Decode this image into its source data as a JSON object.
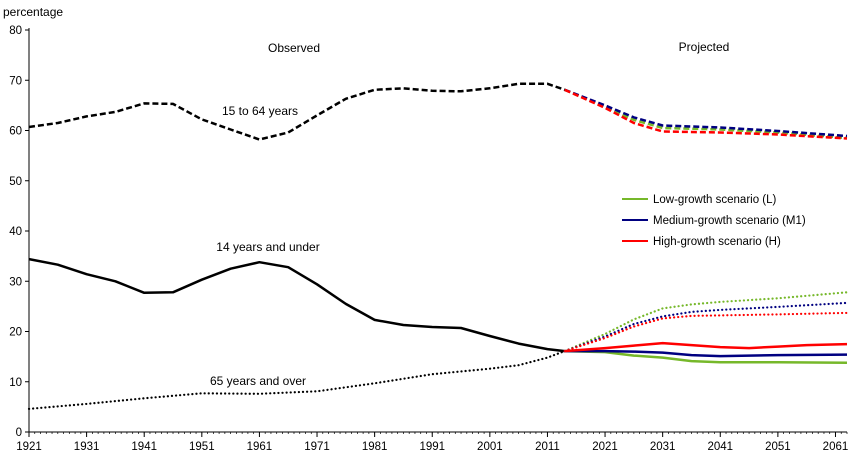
{
  "chart_data": {
    "type": "line",
    "ylabel": "percentage",
    "xlim": [
      1921,
      2063
    ],
    "ylim": [
      0,
      80
    ],
    "yticks": [
      0,
      10,
      20,
      30,
      40,
      50,
      60,
      70,
      80
    ],
    "xticks": [
      1921,
      1931,
      1941,
      1951,
      1961,
      1971,
      1981,
      1991,
      2001,
      2011,
      2021,
      2031,
      2041,
      2051,
      2061
    ],
    "grid": false,
    "legend_position": "right",
    "period_labels": {
      "observed": "Observed",
      "projected": "Projected"
    },
    "annotations": [
      {
        "text": "15 to 64 years"
      },
      {
        "text": "14 years and under"
      },
      {
        "text": "65 years and over"
      }
    ],
    "scenarios": [
      {
        "name": "Low-growth scenario (L)",
        "color": "#76b82a"
      },
      {
        "name": "Medium-growth scenario (M1)",
        "color": "#000080"
      },
      {
        "name": "High-growth scenario (H)",
        "color": "#ff0000"
      }
    ],
    "series": [
      {
        "group": "15 to 64 years",
        "period": "observed",
        "color": "#000000",
        "style": "dashed",
        "points": [
          [
            1921,
            60.7
          ],
          [
            1926,
            61.5
          ],
          [
            1931,
            62.8
          ],
          [
            1936,
            63.7
          ],
          [
            1941,
            65.4
          ],
          [
            1946,
            65.3
          ],
          [
            1951,
            62.2
          ],
          [
            1956,
            60.2
          ],
          [
            1961,
            58.2
          ],
          [
            1966,
            59.6
          ],
          [
            1971,
            63.0
          ],
          [
            1976,
            66.3
          ],
          [
            1981,
            68.1
          ],
          [
            1986,
            68.4
          ],
          [
            1991,
            67.9
          ],
          [
            1996,
            67.8
          ],
          [
            2001,
            68.4
          ],
          [
            2006,
            69.3
          ],
          [
            2011,
            69.3
          ],
          [
            2014,
            68.1
          ]
        ]
      },
      {
        "group": "14 years and under",
        "period": "observed",
        "color": "#000000",
        "style": "solid",
        "points": [
          [
            1921,
            34.4
          ],
          [
            1926,
            33.3
          ],
          [
            1931,
            31.4
          ],
          [
            1936,
            30.0
          ],
          [
            1941,
            27.7
          ],
          [
            1946,
            27.8
          ],
          [
            1951,
            30.3
          ],
          [
            1956,
            32.5
          ],
          [
            1961,
            33.8
          ],
          [
            1966,
            32.8
          ],
          [
            1971,
            29.4
          ],
          [
            1976,
            25.5
          ],
          [
            1981,
            22.3
          ],
          [
            1986,
            21.3
          ],
          [
            1991,
            20.9
          ],
          [
            1996,
            20.7
          ],
          [
            2001,
            19.1
          ],
          [
            2006,
            17.6
          ],
          [
            2011,
            16.5
          ],
          [
            2014,
            16.1
          ]
        ]
      },
      {
        "group": "65 years and over",
        "period": "observed",
        "color": "#000000",
        "style": "dotted",
        "points": [
          [
            1921,
            4.6
          ],
          [
            1931,
            5.6
          ],
          [
            1941,
            6.7
          ],
          [
            1951,
            7.7
          ],
          [
            1961,
            7.6
          ],
          [
            1971,
            8.1
          ],
          [
            1981,
            9.7
          ],
          [
            1991,
            11.5
          ],
          [
            2001,
            12.6
          ],
          [
            2006,
            13.3
          ],
          [
            2011,
            14.8
          ],
          [
            2014,
            16.1
          ]
        ]
      },
      {
        "group": "15 to 64 years",
        "period": "projected",
        "scenario": "Low-growth scenario (L)",
        "color": "#76b82a",
        "style": "dashed",
        "points": [
          [
            2014,
            68.1
          ],
          [
            2021,
            64.7
          ],
          [
            2026,
            62.1
          ],
          [
            2031,
            60.5
          ],
          [
            2041,
            60.2
          ],
          [
            2051,
            59.6
          ],
          [
            2063,
            58.5
          ]
        ]
      },
      {
        "group": "15 to 64 years",
        "period": "projected",
        "scenario": "Medium-growth scenario (M1)",
        "color": "#000080",
        "style": "dashed",
        "points": [
          [
            2014,
            68.1
          ],
          [
            2021,
            65.0
          ],
          [
            2026,
            62.6
          ],
          [
            2031,
            61.0
          ],
          [
            2041,
            60.6
          ],
          [
            2051,
            59.9
          ],
          [
            2063,
            58.9
          ]
        ]
      },
      {
        "group": "15 to 64 years",
        "period": "projected",
        "scenario": "High-growth scenario (H)",
        "color": "#ff0000",
        "style": "dashed",
        "points": [
          [
            2014,
            68.1
          ],
          [
            2021,
            64.5
          ],
          [
            2026,
            61.5
          ],
          [
            2031,
            59.8
          ],
          [
            2041,
            59.6
          ],
          [
            2051,
            59.2
          ],
          [
            2063,
            58.4
          ]
        ]
      },
      {
        "group": "14 years and under",
        "period": "projected",
        "scenario": "Low-growth scenario (L)",
        "color": "#76b82a",
        "style": "solid",
        "points": [
          [
            2014,
            16.1
          ],
          [
            2021,
            15.9
          ],
          [
            2026,
            15.2
          ],
          [
            2031,
            14.8
          ],
          [
            2036,
            14.1
          ],
          [
            2041,
            13.9
          ],
          [
            2051,
            13.9
          ],
          [
            2063,
            13.8
          ]
        ]
      },
      {
        "group": "14 years and under",
        "period": "projected",
        "scenario": "Medium-growth scenario (M1)",
        "color": "#000080",
        "style": "solid",
        "points": [
          [
            2014,
            16.1
          ],
          [
            2021,
            16.1
          ],
          [
            2026,
            16.0
          ],
          [
            2031,
            15.8
          ],
          [
            2036,
            15.3
          ],
          [
            2041,
            15.1
          ],
          [
            2051,
            15.3
          ],
          [
            2063,
            15.4
          ]
        ]
      },
      {
        "group": "14 years and under",
        "period": "projected",
        "scenario": "High-growth scenario (H)",
        "color": "#ff0000",
        "style": "solid",
        "points": [
          [
            2014,
            16.1
          ],
          [
            2021,
            16.7
          ],
          [
            2026,
            17.2
          ],
          [
            2031,
            17.7
          ],
          [
            2036,
            17.3
          ],
          [
            2041,
            16.9
          ],
          [
            2046,
            16.7
          ],
          [
            2051,
            17.0
          ],
          [
            2056,
            17.3
          ],
          [
            2063,
            17.5
          ]
        ]
      },
      {
        "group": "65 years and over",
        "period": "projected",
        "scenario": "Low-growth scenario (L)",
        "color": "#76b82a",
        "style": "dotted",
        "points": [
          [
            2014,
            16.1
          ],
          [
            2021,
            19.5
          ],
          [
            2026,
            22.4
          ],
          [
            2031,
            24.6
          ],
          [
            2036,
            25.4
          ],
          [
            2041,
            25.9
          ],
          [
            2051,
            26.6
          ],
          [
            2063,
            27.8
          ]
        ]
      },
      {
        "group": "65 years and over",
        "period": "projected",
        "scenario": "Medium-growth scenario (M1)",
        "color": "#000080",
        "style": "dotted",
        "points": [
          [
            2014,
            16.1
          ],
          [
            2021,
            19.0
          ],
          [
            2026,
            21.5
          ],
          [
            2031,
            23.0
          ],
          [
            2036,
            23.9
          ],
          [
            2041,
            24.3
          ],
          [
            2051,
            24.9
          ],
          [
            2063,
            25.7
          ]
        ]
      },
      {
        "group": "65 years and over",
        "period": "projected",
        "scenario": "High-growth scenario (H)",
        "color": "#ff0000",
        "style": "dotted",
        "points": [
          [
            2014,
            16.1
          ],
          [
            2021,
            18.7
          ],
          [
            2026,
            21.0
          ],
          [
            2031,
            22.6
          ],
          [
            2036,
            23.1
          ],
          [
            2041,
            23.2
          ],
          [
            2051,
            23.4
          ],
          [
            2063,
            23.7
          ]
        ]
      }
    ]
  }
}
